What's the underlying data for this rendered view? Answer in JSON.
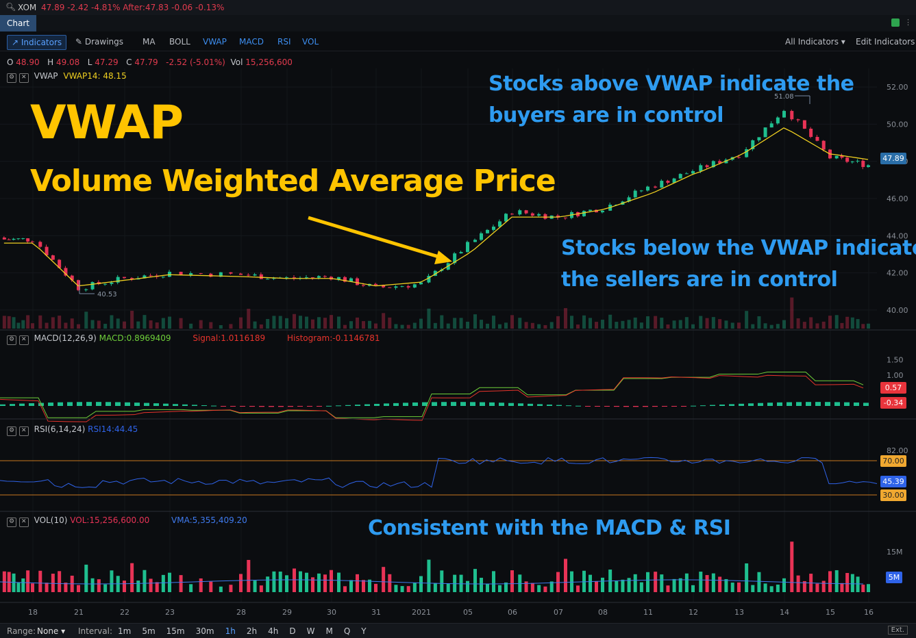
{
  "window": {
    "symbol": "XOM",
    "quote": "47.89 -2.42 -4.81% After:47.83 -0.06 -0.13%",
    "tab": "Chart"
  },
  "toolbar": {
    "indicators": "Indicators",
    "drawings": "Drawings",
    "items": [
      "MA",
      "BOLL",
      "VWAP",
      "MACD",
      "RSI",
      "VOL"
    ],
    "all_indicators": "All Indicators",
    "edit_indicators": "Edit Indicators"
  },
  "ohlc": {
    "o_label": "O",
    "o": "48.90",
    "h_label": "H",
    "h": "49.08",
    "l_label": "L",
    "l": "47.29",
    "c_label": "C",
    "c": "47.79",
    "chg": "-2.52 (-5.01%)",
    "vol_label": "Vol",
    "vol": "15,256,600"
  },
  "colors": {
    "up": "#1fbf8f",
    "down": "#e83356",
    "vwap": "#f0d020",
    "macd": "#6fcf3a",
    "signal": "#e8342c",
    "rsi": "#2f63e8",
    "vma": "#3f7bf0",
    "title": "#ffc400",
    "note": "#2e9bf0"
  },
  "annotations": {
    "title": "VWAP",
    "subtitle": "Volume Weighted Average Price",
    "above": [
      "Stocks above VWAP indicate the",
      "buyers are in control"
    ],
    "below": [
      "Stocks below the VWAP indicate",
      "the sellers are in control"
    ],
    "consistent": "Consistent with the MACD & RSI"
  },
  "panes": {
    "price": {
      "label": "VWAP",
      "value": "VWAP14: 48.15",
      "last_tag": "47.89",
      "high_marker": "51.08",
      "low_marker": "40.53"
    },
    "macd": {
      "label": "MACD(12,26,9)",
      "macd": "MACD:0.8969409",
      "signal": "Signal:1.0116189",
      "hist": "Histogram:-0.1146781",
      "tag1": "0.57",
      "tag2": "-0.34"
    },
    "rsi": {
      "label": "RSI(6,14,24)",
      "value": "RSI14:44.45",
      "tag_high": "70.00",
      "tag_mid": "45.39",
      "tag_low": "30.00"
    },
    "vol": {
      "label": "VOL(10)",
      "vol": "VOL:15,256,600.00",
      "vma": "VMA:5,355,409.20",
      "tag": "5M"
    }
  },
  "axes": {
    "price_ticks": [
      "52.00",
      "50.00",
      "48.00",
      "46.00",
      "44.00",
      "42.00",
      "40.00"
    ],
    "macd_ticks": [
      "1.50",
      "1.00"
    ],
    "rsi_ticks": [
      "82.00"
    ],
    "vol_ticks": [
      "15M"
    ],
    "x_ticks": [
      "18",
      "21",
      "22",
      "23",
      "28",
      "29",
      "30",
      "31",
      "2021",
      "05",
      "06",
      "07",
      "08",
      "11",
      "12",
      "13",
      "14",
      "15",
      "16"
    ]
  },
  "range": {
    "range_label": "Range:",
    "range_value": "None",
    "interval_label": "Interval:",
    "intervals": [
      "1m",
      "5m",
      "15m",
      "30m",
      "1h",
      "2h",
      "4h",
      "D",
      "W",
      "M",
      "Q",
      "Y"
    ],
    "ext": "Ext."
  },
  "chart_data": {
    "type": "candlestick",
    "title": "",
    "x": [
      "18",
      "21",
      "22",
      "23",
      "28",
      "29",
      "30",
      "31",
      "2021",
      "05",
      "06",
      "07",
      "08",
      "11",
      "12",
      "13",
      "14",
      "15",
      "16"
    ],
    "ylim": [
      39.0,
      53.0
    ],
    "series": [
      {
        "name": "Close",
        "values": [
          43.8,
          41.2,
          41.7,
          42.0,
          41.9,
          41.7,
          41.8,
          41.2,
          41.4,
          43.5,
          45.3,
          45.0,
          45.5,
          46.6,
          47.5,
          48.4,
          50.8,
          48.2,
          47.8
        ]
      },
      {
        "name": "VWAP14",
        "values": [
          43.6,
          41.3,
          41.6,
          41.9,
          41.8,
          41.7,
          41.7,
          41.3,
          41.5,
          43.0,
          45.0,
          45.0,
          45.4,
          46.2,
          47.3,
          48.3,
          49.8,
          48.4,
          48.1
        ]
      }
    ]
  }
}
